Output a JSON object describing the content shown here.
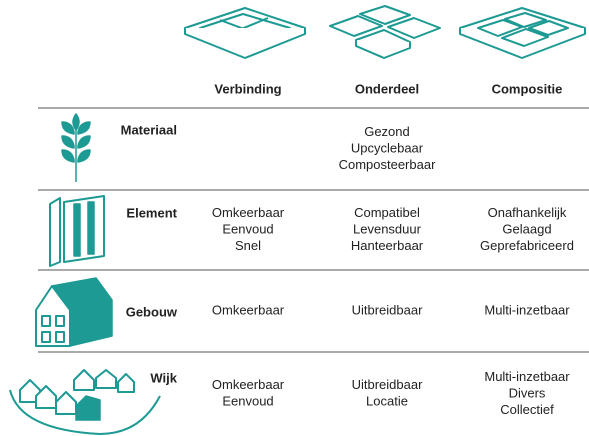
{
  "table": {
    "columns": [
      "Verbinding",
      "Onderdeel",
      "Compositie"
    ],
    "rows": [
      {
        "label": "Materiaal",
        "cells": [
          [],
          [
            "Gezond",
            "Upcyclebaar",
            "Composteerbaar"
          ],
          []
        ]
      },
      {
        "label": "Element",
        "cells": [
          [
            "Omkeerbaar",
            "Eenvoud",
            "Snel"
          ],
          [
            "Compatibel",
            "Levensduur",
            "Hanteerbaar"
          ],
          [
            "Onafhankelijk",
            "Gelaagd",
            "Geprefabriceerd"
          ]
        ]
      },
      {
        "label": "Gebouw",
        "cells": [
          [
            "Omkeerbaar"
          ],
          [
            "Uitbreidbaar"
          ],
          [
            "Multi-inzetbaar"
          ]
        ]
      },
      {
        "label": "Wijk",
        "cells": [
          [
            "Omkeerbaar",
            "Eenvoud"
          ],
          [
            "Uitbreidbaar",
            "Locatie"
          ],
          [
            "Multi-inzetbaar",
            "Divers",
            "Collectief"
          ]
        ]
      }
    ]
  }
}
